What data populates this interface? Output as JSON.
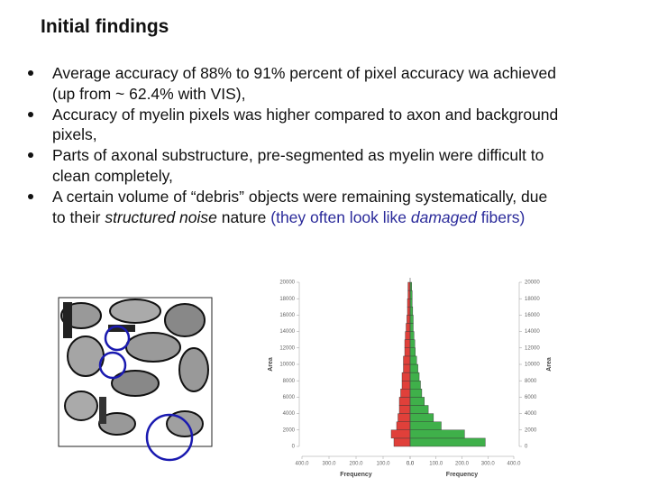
{
  "header": {
    "title": "Initial findings"
  },
  "bullets": [
    {
      "lines": [
        [
          {
            "text": "Average accuracy of 88% to 91% percent of pixel accuracy wa achieved"
          }
        ],
        [
          {
            "text": "(up from ~ 62.4% with VIS),"
          }
        ]
      ]
    },
    {
      "lines": [
        [
          {
            "text": "Accuracy of myelin pixels was higher compared to axon and background"
          }
        ],
        [
          {
            "text": "pixels,"
          }
        ]
      ]
    },
    {
      "lines": [
        [
          {
            "text": "Parts of axonal substructure, pre-segmented as myelin were difficult to"
          }
        ],
        [
          {
            "text": "clean completely,"
          }
        ]
      ]
    },
    {
      "lines": [
        [
          {
            "text": "A certain volume of “debris” objects were remaining systematically, due"
          }
        ],
        [
          {
            "text": "to their "
          },
          {
            "text": "structured noise",
            "italic": true
          },
          {
            "text": " nature "
          },
          {
            "text": "(they often look like ",
            "color": "#2a2a9a"
          },
          {
            "text": "damaged",
            "italic": true,
            "color": "#2a2a9a"
          },
          {
            "text": " fibers)",
            "color": "#2a2a9a"
          }
        ]
      ]
    }
  ],
  "chart_data": [
    {
      "type": "histogram",
      "orientation": "horizontal",
      "direction": "left",
      "color": "#e0403a",
      "ylabel": "Area",
      "xlabel": "Frequency",
      "bins": [
        0,
        1000,
        2000,
        3000,
        4000,
        5000,
        6000,
        7000,
        8000,
        9000,
        10000,
        11000,
        12000,
        13000,
        14000,
        15000,
        16000,
        17000,
        18000,
        19000,
        20000
      ],
      "counts": [
        60,
        70,
        50,
        45,
        40,
        40,
        35,
        30,
        30,
        25,
        25,
        20,
        20,
        18,
        15,
        12,
        10,
        10,
        8,
        8
      ],
      "xlim": [
        400,
        0
      ],
      "xticks": [
        {
          "value": 400,
          "label": "400.0"
        },
        {
          "value": 300,
          "label": "300.0"
        },
        {
          "value": 200,
          "label": "200.0"
        },
        {
          "value": 100,
          "label": "100.0"
        },
        {
          "value": 0,
          "label": "0.0"
        }
      ],
      "ylim": [
        0,
        20000
      ],
      "yticks": [
        0,
        2000,
        4000,
        6000,
        8000,
        10000,
        12000,
        14000,
        16000,
        18000,
        20000
      ]
    },
    {
      "type": "histogram",
      "orientation": "horizontal",
      "direction": "right",
      "color": "#3fb04a",
      "ylabel": "Area",
      "xlabel": "Frequency",
      "bins": [
        0,
        1000,
        2000,
        3000,
        4000,
        5000,
        6000,
        7000,
        8000,
        9000,
        10000,
        11000,
        12000,
        13000,
        14000,
        15000,
        16000,
        17000,
        18000,
        19000,
        20000
      ],
      "counts": [
        290,
        210,
        120,
        90,
        70,
        55,
        45,
        40,
        35,
        30,
        25,
        20,
        18,
        15,
        12,
        12,
        10,
        8,
        8,
        6
      ],
      "xlim": [
        0,
        400
      ],
      "xticks": [
        {
          "value": 0,
          "label": "0.0"
        },
        {
          "value": 100,
          "label": "100.0"
        },
        {
          "value": 200,
          "label": "200.0"
        },
        {
          "value": 300,
          "label": "300.0"
        },
        {
          "value": 400,
          "label": "400.0"
        }
      ],
      "ylim": [
        0,
        20000
      ],
      "yticks": [
        0,
        2000,
        4000,
        6000,
        8000,
        10000,
        12000,
        14000,
        16000,
        18000,
        20000
      ]
    }
  ]
}
